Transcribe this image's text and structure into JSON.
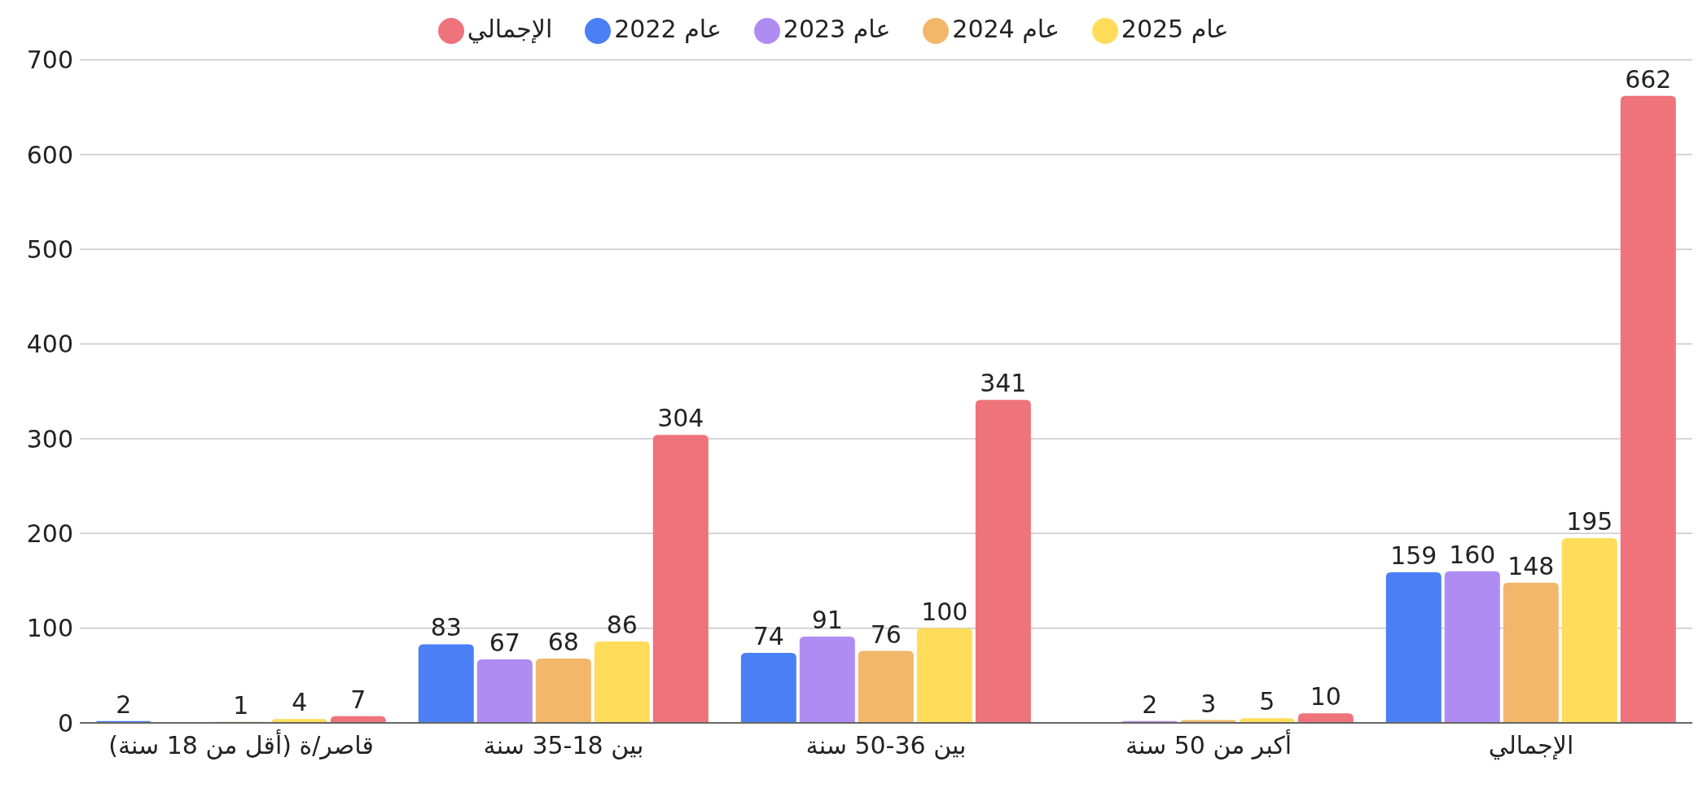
{
  "chart_data": {
    "type": "bar",
    "categories": [
      "قاصر/ة (أقل من 18 سنة)",
      "بين 18-35 سنة",
      "بين 36-50 سنة",
      "أكبر من 50 سنة",
      "الإجمالي"
    ],
    "series": [
      {
        "name": "عام 2022",
        "color": "#4a7ff5",
        "values": [
          2,
          83,
          74,
          0,
          159
        ],
        "value_labels": [
          "2",
          "83",
          "74",
          null,
          "159"
        ]
      },
      {
        "name": "عام 2023",
        "color": "#ae8cf2",
        "values": [
          0,
          67,
          91,
          2,
          160
        ],
        "value_labels": [
          null,
          "67",
          "91",
          "2",
          "160"
        ]
      },
      {
        "name": "عام 2024",
        "color": "#f2b76b",
        "values": [
          1,
          68,
          76,
          3,
          148
        ],
        "value_labels": [
          "1",
          "68",
          "76",
          "3",
          "148"
        ]
      },
      {
        "name": "عام 2025",
        "color": "#ffdc5a",
        "values": [
          4,
          86,
          100,
          5,
          195
        ],
        "value_labels": [
          "4",
          "86",
          "100",
          "5",
          "195"
        ]
      },
      {
        "name": "الإجمالي",
        "color": "#ef737b",
        "values": [
          7,
          304,
          341,
          10,
          662
        ],
        "value_labels": [
          "7",
          "304",
          "341",
          "10",
          "662"
        ]
      }
    ],
    "ylim": [
      0,
      700
    ],
    "yticks": [
      0,
      100,
      200,
      300,
      400,
      500,
      600,
      700
    ],
    "grid": "y",
    "legend": "top"
  }
}
